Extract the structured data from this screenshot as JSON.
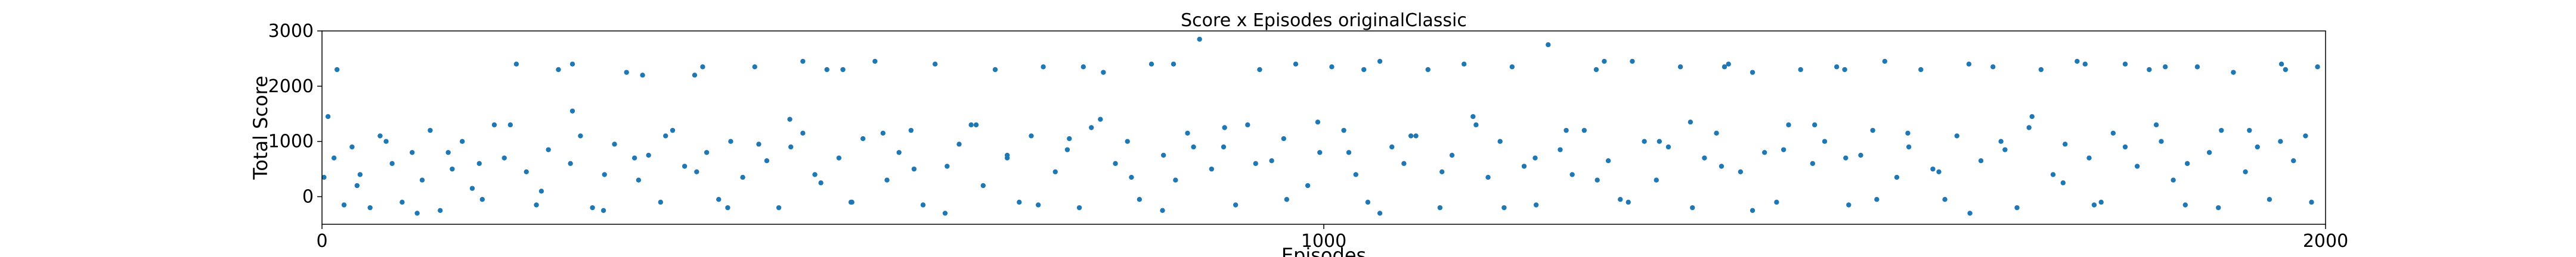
{
  "chart_data": {
    "type": "scatter",
    "title": "Score x Episodes originalClassic",
    "xlabel": "Episodes",
    "ylabel": "Total Score",
    "xlim": [
      0,
      2000
    ],
    "ylim": [
      -500,
      3000
    ],
    "x_ticks": [
      0,
      1000,
      2000
    ],
    "x_tick_labels": [
      "0",
      "1000",
      "2000"
    ],
    "y_ticks": [
      0,
      1000,
      2000,
      3000
    ],
    "y_tick_labels": [
      "0",
      "1000",
      "2000",
      "3000"
    ],
    "grid": false,
    "legend": "none",
    "series": [
      {
        "name": "Total Score",
        "color": "#1f77b4",
        "x": [
          2,
          12,
          22,
          30,
          38,
          48,
          58,
          70,
          80,
          90,
          100,
          108,
          118,
          130,
          140,
          150,
          160,
          172,
          182,
          194,
          204,
          214,
          226,
          236,
          248,
          258,
          270,
          282,
          292,
          304,
          316,
          326,
          338,
          350,
          362,
          372,
          384,
          396,
          408,
          420,
          432,
          444,
          456,
          468,
          480,
          492,
          504,
          516,
          528,
          540,
          552,
          564,
          576,
          588,
          600,
          612,
          624,
          636,
          648,
          660,
          672,
          684,
          696,
          708,
          720,
          732,
          744,
          756,
          768,
          780,
          792,
          804,
          816,
          828,
          840,
          852,
          864,
          876,
          888,
          900,
          912,
          924,
          936,
          948,
          960,
          972,
          984,
          996,
          1008,
          1020,
          1032,
          1044,
          1056,
          1068,
          1080,
          1092,
          1104,
          1116,
          1128,
          1140,
          1152,
          1164,
          1176,
          1188,
          1200,
          1212,
          1224,
          1236,
          1248,
          1260,
          1272,
          1284,
          1296,
          1308,
          1320,
          1332,
          1344,
          1356,
          1368,
          1380,
          1392,
          1404,
          1416,
          1428,
          1440,
          1452,
          1464,
          1476,
          1488,
          1500,
          1512,
          1524,
          1536,
          1548,
          1560,
          1572,
          1584,
          1596,
          1608,
          1620,
          1632,
          1644,
          1656,
          1668,
          1680,
          1692,
          1704,
          1716,
          1728,
          1740,
          1752,
          1764,
          1776,
          1788,
          1800,
          1812,
          1824,
          1836,
          1848,
          1860,
          1872,
          1884,
          1896,
          1908,
          1920,
          1932,
          1944,
          1956,
          1968,
          1980,
          1992,
          15,
          250,
          320,
          380,
          480,
          520,
          760,
          850,
          1040,
          1280,
          1400,
          1520,
          1760,
          1840,
          1960,
          6,
          35,
          64,
          95,
          126,
          157,
          188,
          219,
          250,
          281,
          312,
          343,
          374,
          405,
          436,
          467,
          498,
          529,
          560,
          591,
          622,
          653,
          684,
          715,
          746,
          777,
          808,
          839,
          870,
          901,
          932,
          963,
          994,
          1025,
          1056,
          1087,
          1118,
          1149,
          1180,
          1211,
          1242,
          1273,
          1304,
          1335,
          1366,
          1397,
          1428,
          1459,
          1490,
          1521,
          1552,
          1583,
          1614,
          1645,
          1676,
          1707,
          1738,
          1769,
          1800,
          1831,
          1862,
          1893,
          1924,
          1955,
          1986
        ],
        "y": [
          350,
          700,
          -150,
          900,
          400,
          -200,
          1100,
          600,
          -100,
          800,
          300,
          1200,
          -250,
          500,
          1000,
          150,
          -50,
          1300,
          700,
          2400,
          450,
          -150,
          850,
          2300,
          600,
          1100,
          -200,
          400,
          950,
          2250,
          300,
          750,
          -100,
          1200,
          550,
          2200,
          800,
          -50,
          1000,
          350,
          2350,
          650,
          -200,
          900,
          1150,
          400,
          2300,
          700,
          -100,
          1050,
          2450,
          300,
          800,
          1200,
          -150,
          2400,
          550,
          950,
          1300,
          200,
          2300,
          700,
          -100,
          1100,
          2350,
          450,
          850,
          -200,
          1250,
          2250,
          600,
          1000,
          -50,
          2400,
          750,
          300,
          1150,
          2850,
          500,
          900,
          -150,
          1300,
          2300,
          650,
          1050,
          2400,
          200,
          800,
          2350,
          1200,
          400,
          -100,
          2450,
          900,
          600,
          1100,
          2300,
          -200,
          750,
          2400,
          1300,
          350,
          1000,
          2350,
          550,
          -150,
          2750,
          850,
          400,
          1200,
          2300,
          650,
          -50,
          2450,
          1000,
          300,
          900,
          2350,
          -200,
          700,
          1150,
          2400,
          450,
          2250,
          800,
          -100,
          1300,
          2300,
          600,
          1000,
          2350,
          -150,
          750,
          1200,
          2450,
          350,
          900,
          2300,
          500,
          -50,
          1100,
          2400,
          650,
          2350,
          850,
          -200,
          1250,
          2300,
          400,
          950,
          2450,
          700,
          -100,
          1150,
          2400,
          550,
          2300,
          1000,
          300,
          -150,
          2350,
          800,
          1200,
          2250,
          450,
          900,
          -50,
          2400,
          650,
          1100,
          2350,
          2300,
          2400,
          2200,
          2350,
          2450,
          2300,
          2350,
          2400,
          2300,
          2450,
          2350,
          2300,
          2400,
          2350,
          2300,
          1450,
          200,
          1000,
          -300,
          800,
          600,
          1300,
          100,
          1550,
          -250,
          700,
          1100,
          450,
          -200,
          950,
          1400,
          250,
          -100,
          1150,
          500,
          -300,
          1300,
          750,
          -150,
          1050,
          1400,
          350,
          -250,
          900,
          1250,
          600,
          -50,
          1350,
          800,
          -300,
          1100,
          450,
          1450,
          -200,
          700,
          1200,
          300,
          -100,
          1000,
          1350,
          550,
          -250,
          850,
          1300,
          700,
          -50,
          1150,
          450,
          -300,
          1000,
          1450,
          250,
          -150,
          900,
          1300,
          600,
          -200,
          1200,
          1000,
          -100
        ],
        "point_count_note": "representative sample of scattered per-episode points"
      }
    ]
  }
}
